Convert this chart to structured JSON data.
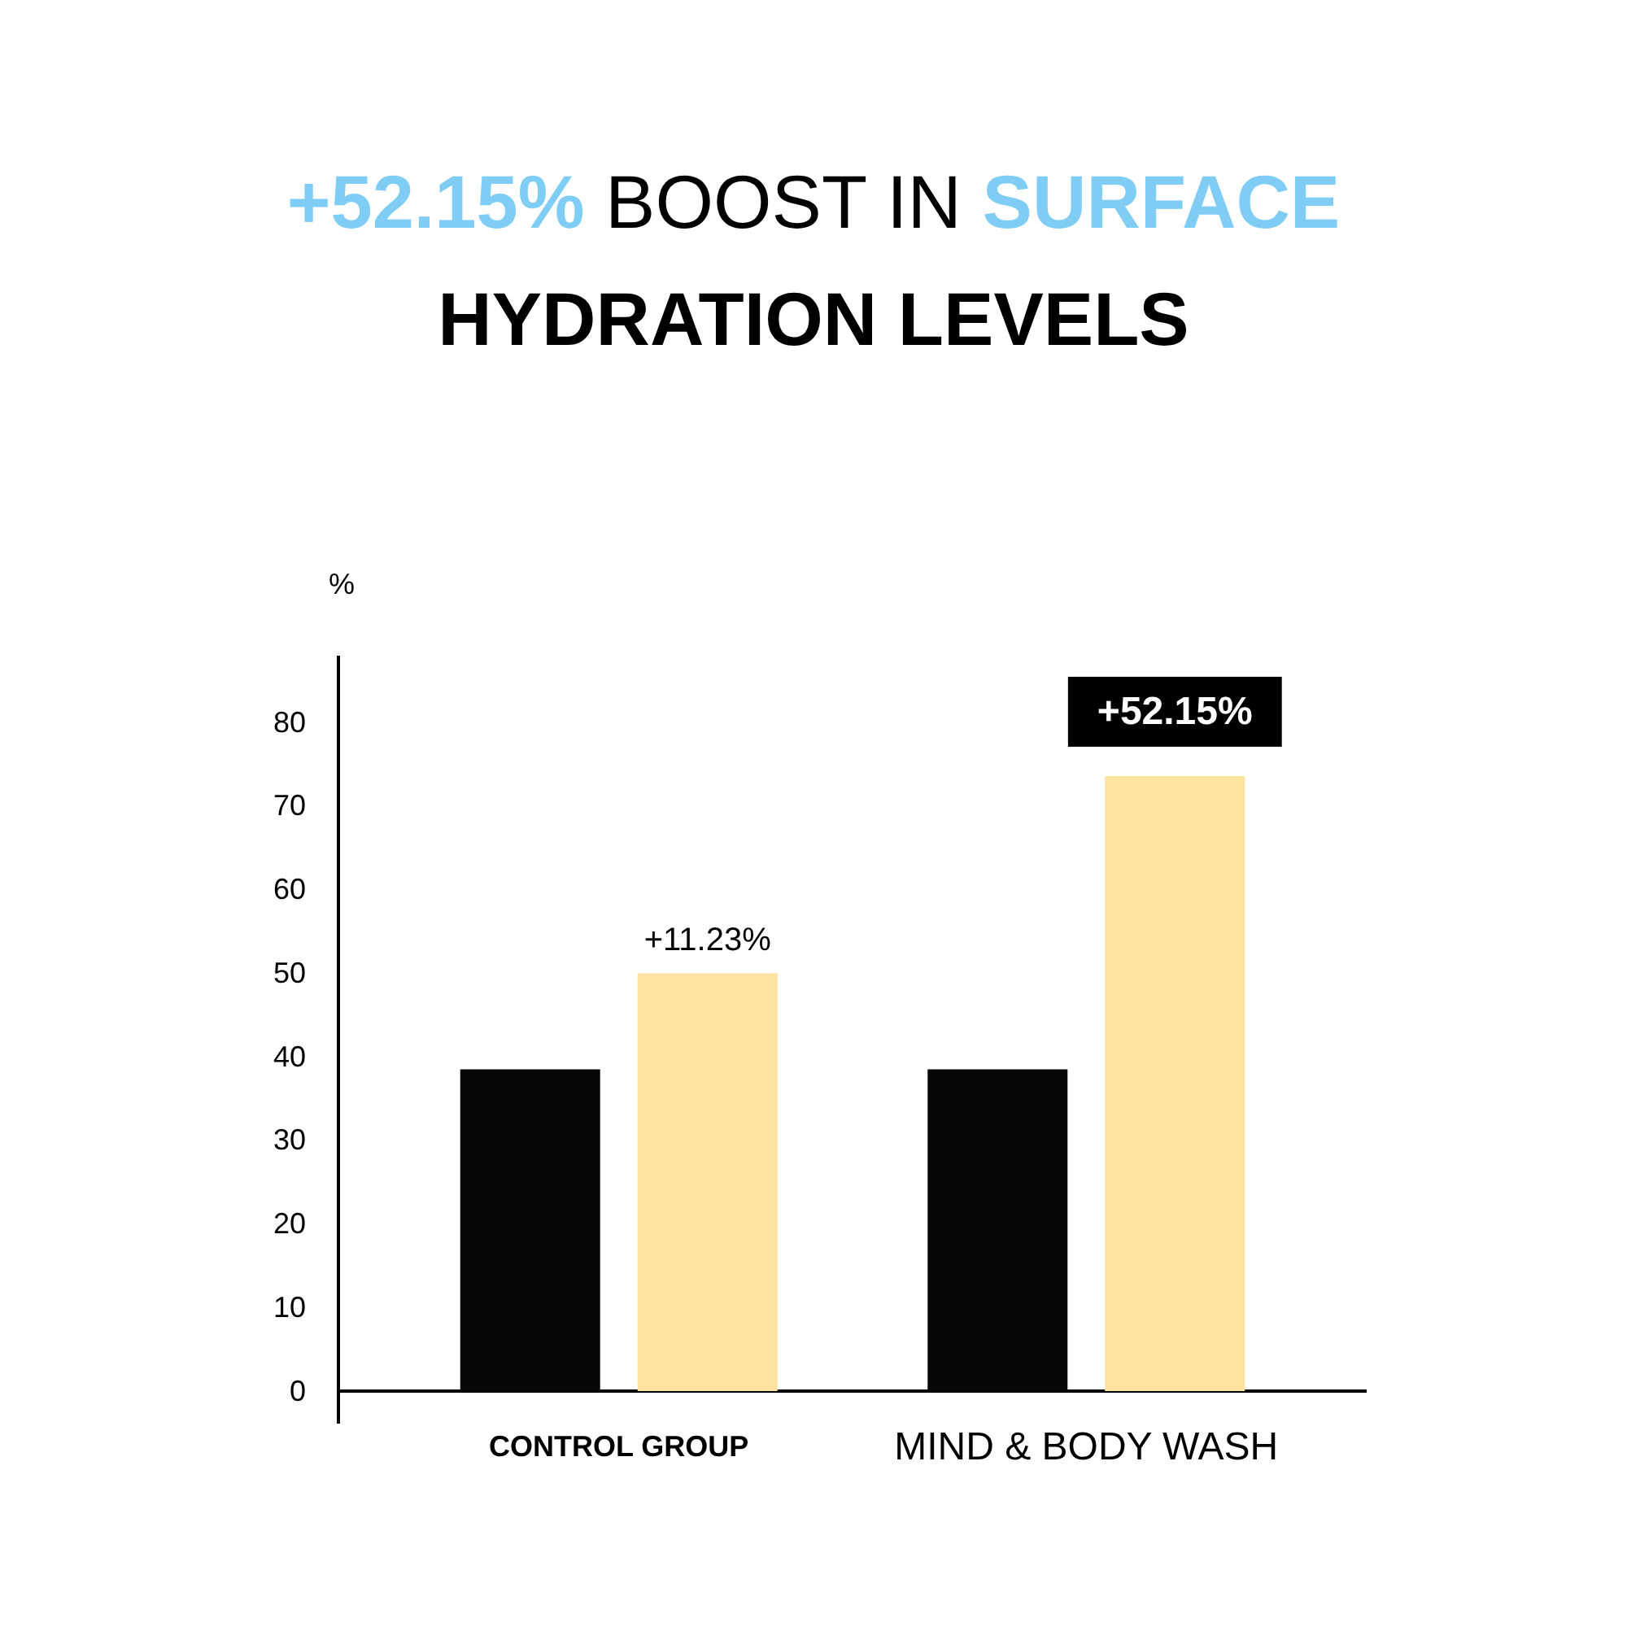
{
  "chart_data": {
    "type": "bar",
    "title": "+52.15% BOOST IN SURFACE HYDRATION LEVELS",
    "ylabel": "%",
    "categories": [
      "CONTROL GROUP",
      "MIND & BODY WASH"
    ],
    "series": [
      {
        "color": "#070707",
        "values": [
          38.5,
          38.5
        ]
      },
      {
        "color": "#fde39f",
        "values": [
          50,
          73.6
        ]
      }
    ],
    "ylim": [
      0,
      88
    ],
    "yticks": [
      0,
      10,
      20,
      30,
      40,
      50,
      60,
      70,
      80
    ],
    "grid": false,
    "annotations": [
      "+11.23%",
      "+52.15%"
    ]
  }
}
